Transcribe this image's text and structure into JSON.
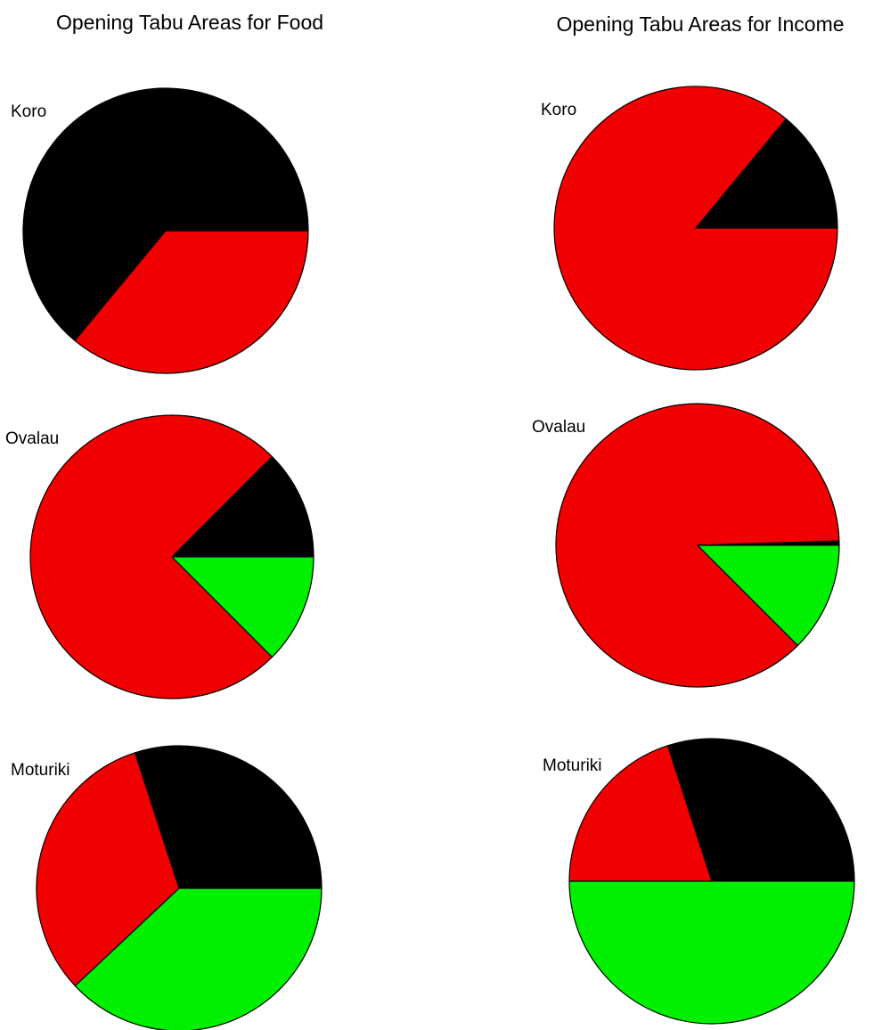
{
  "colors": {
    "black": "#000000",
    "red": "#f00000",
    "green": "#00f000"
  },
  "chart_data": [
    {
      "type": "pie",
      "title": "Opening Tabu Areas for Food",
      "pies": [
        {
          "label": "Koro",
          "slices": [
            {
              "color": "black",
              "value": 64
            },
            {
              "color": "red",
              "value": 36
            }
          ]
        },
        {
          "label": "Ovalau",
          "slices": [
            {
              "color": "black",
              "value": 12.5
            },
            {
              "color": "red",
              "value": 75
            },
            {
              "color": "green",
              "value": 12.5
            }
          ]
        },
        {
          "label": "Moturiki",
          "slices": [
            {
              "color": "black",
              "value": 30
            },
            {
              "color": "red",
              "value": 32
            },
            {
              "color": "green",
              "value": 38
            }
          ]
        }
      ]
    },
    {
      "type": "pie",
      "title": "Opening Tabu Areas for Income",
      "pies": [
        {
          "label": "Koro",
          "slices": [
            {
              "color": "black",
              "value": 14
            },
            {
              "color": "red",
              "value": 86
            }
          ]
        },
        {
          "label": "Ovalau",
          "slices": [
            {
              "color": "black",
              "value": 0.5
            },
            {
              "color": "red",
              "value": 87
            },
            {
              "color": "green",
              "value": 12.5
            }
          ]
        },
        {
          "label": "Moturiki",
          "slices": [
            {
              "color": "black",
              "value": 30
            },
            {
              "color": "red",
              "value": 20
            },
            {
              "color": "green",
              "value": 50
            }
          ]
        }
      ]
    }
  ]
}
